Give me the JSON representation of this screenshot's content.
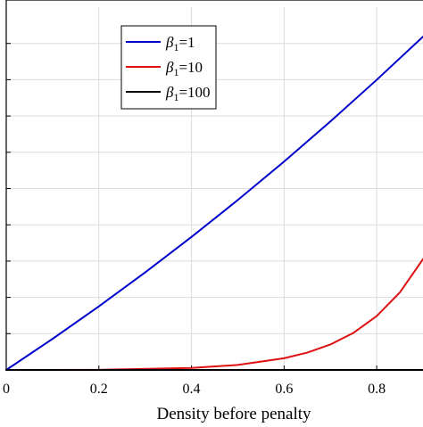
{
  "chart_data": {
    "type": "line",
    "title": "",
    "xlabel": "Density before penalty",
    "ylabel": "",
    "xlim": [
      0,
      0.9
    ],
    "ylim": [
      0,
      1
    ],
    "x_ticks": [
      0,
      0.2,
      0.4,
      0.6,
      0.8
    ],
    "x_tick_labels": [
      "0",
      "0.2",
      "0.4",
      "0.6",
      "0.8"
    ],
    "grid": true,
    "legend_position": "top-left",
    "series": [
      {
        "name": "β1=1",
        "legend_main": "β",
        "legend_sub": "1",
        "legend_rest": "=1",
        "color": "#0000cc",
        "x": [
          0,
          0.1,
          0.2,
          0.3,
          0.4,
          0.5,
          0.6,
          0.7,
          0.8,
          0.9
        ],
        "y": [
          0,
          0.0857,
          0.1753,
          0.2689,
          0.3665,
          0.4683,
          0.5744,
          0.6848,
          0.7996,
          0.9187
        ]
      },
      {
        "name": "β1=10",
        "legend_main": "β",
        "legend_sub": "1",
        "legend_rest": "=10",
        "color": "#dd1111",
        "x": [
          0,
          0.2,
          0.4,
          0.5,
          0.6,
          0.65,
          0.7,
          0.75,
          0.8,
          0.85,
          0.9
        ],
        "y": [
          0,
          0.0004,
          0.0055,
          0.0138,
          0.0323,
          0.0478,
          0.0701,
          0.1023,
          0.1484,
          0.2136,
          0.3053
        ]
      },
      {
        "name": "β1=100",
        "legend_main": "β",
        "legend_sub": "1",
        "legend_rest": "=100",
        "color": "#000000",
        "x": [
          0,
          0.2,
          0.4,
          0.6,
          0.8,
          0.9
        ],
        "y": [
          0,
          0,
          0,
          0,
          0,
          0
        ]
      }
    ]
  }
}
